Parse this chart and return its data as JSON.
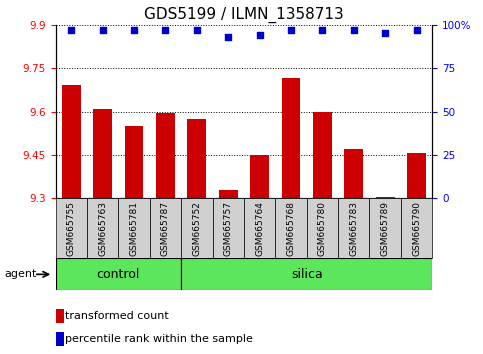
{
  "title": "GDS5199 / ILMN_1358713",
  "samples": [
    "GSM665755",
    "GSM665763",
    "GSM665781",
    "GSM665787",
    "GSM665752",
    "GSM665757",
    "GSM665764",
    "GSM665768",
    "GSM665780",
    "GSM665783",
    "GSM665789",
    "GSM665790"
  ],
  "transformed_counts": [
    9.69,
    9.61,
    9.55,
    9.595,
    9.575,
    9.33,
    9.45,
    9.715,
    9.6,
    9.47,
    9.305,
    9.455
  ],
  "percentile_ranks": [
    97,
    97,
    97,
    97,
    97,
    93,
    94,
    97,
    97,
    97,
    95,
    97
  ],
  "groups": [
    "control",
    "control",
    "control",
    "control",
    "silica",
    "silica",
    "silica",
    "silica",
    "silica",
    "silica",
    "silica",
    "silica"
  ],
  "control_count": 4,
  "silica_count": 8,
  "ylim_left": [
    9.3,
    9.9
  ],
  "ylim_right": [
    0,
    100
  ],
  "yticks_left": [
    9.3,
    9.45,
    9.6,
    9.75,
    9.9
  ],
  "yticks_right": [
    0,
    25,
    50,
    75,
    100
  ],
  "ytick_labels_left": [
    "9.3",
    "9.45",
    "9.6",
    "9.75",
    "9.9"
  ],
  "ytick_labels_right": [
    "0",
    "25",
    "50",
    "75",
    "100%"
  ],
  "bar_color": "#cc0000",
  "scatter_color": "#0000cc",
  "group_bg": "#5ce65c",
  "sample_bg": "#d0d0d0",
  "title_fontsize": 11,
  "tick_fontsize": 7.5,
  "sample_fontsize": 6.5,
  "group_fontsize": 9,
  "legend_fontsize": 8,
  "agent_fontsize": 8
}
